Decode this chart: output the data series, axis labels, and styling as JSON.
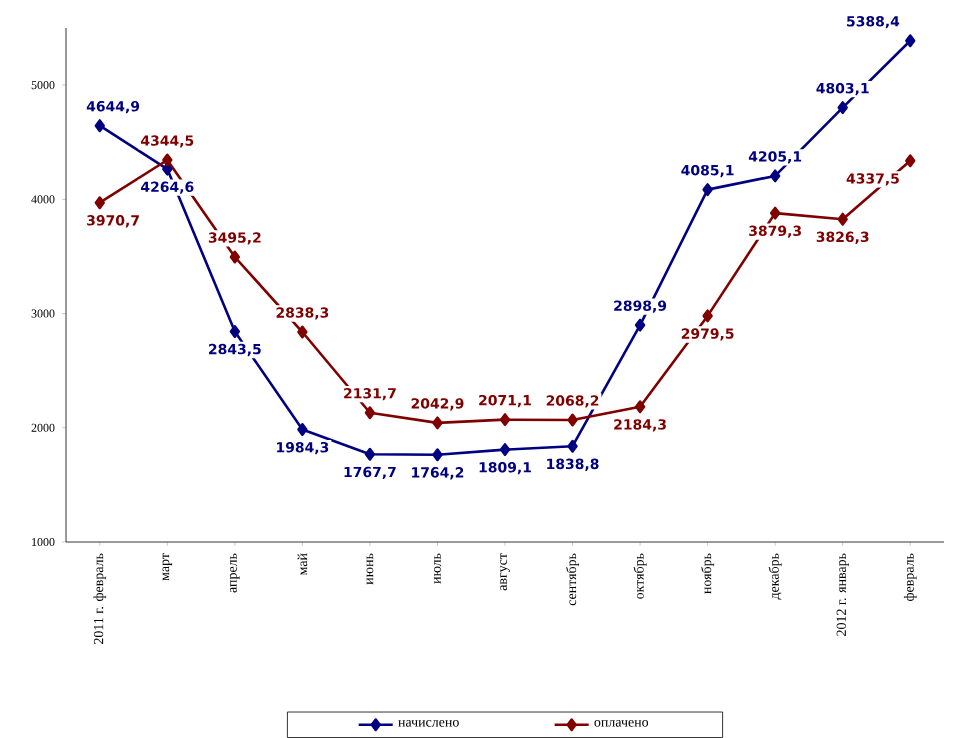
{
  "chart_data": {
    "type": "line",
    "categories": [
      "2011 г. февраль",
      "март",
      "апрель",
      "май",
      "июнь",
      "июль",
      "август",
      "сентябрь",
      "октябрь",
      "ноябрь",
      "декабрь",
      "2012 г. январь",
      "февраль"
    ],
    "series": [
      {
        "name": "начислено",
        "color": "#000080",
        "values": [
          4644.9,
          4264.6,
          2843.5,
          1984.3,
          1767.7,
          1764.2,
          1809.1,
          1838.8,
          2898.9,
          4085.1,
          4205.1,
          4803.1,
          5388.4
        ],
        "value_labels": [
          "4644,9",
          "4264,6",
          "2843,5",
          "1984,3",
          "1767,7",
          "1764,2",
          "1809,1",
          "1838,8",
          "2898,9",
          "4085,1",
          "4205,1",
          "4803,1",
          "5388,4"
        ]
      },
      {
        "name": "оплачено",
        "color": "#800000",
        "values": [
          3970.7,
          4344.5,
          3495.2,
          2838.3,
          2131.7,
          2042.9,
          2071.1,
          2068.2,
          2184.3,
          2979.5,
          3879.3,
          3826.3,
          4337.5
        ],
        "value_labels": [
          "3970,7",
          "4344,5",
          "3495,2",
          "2838,3",
          "2131,7",
          "2042,9",
          "2071,1",
          "2068,2",
          "2184,3",
          "2979,5",
          "3879,3",
          "3826,3",
          "4337,5"
        ]
      }
    ],
    "ylim": [
      1000,
      5500
    ],
    "yticks": [
      1000,
      2000,
      3000,
      4000,
      5000
    ],
    "marker": "diamond",
    "legend": "bottom",
    "grid": false
  }
}
